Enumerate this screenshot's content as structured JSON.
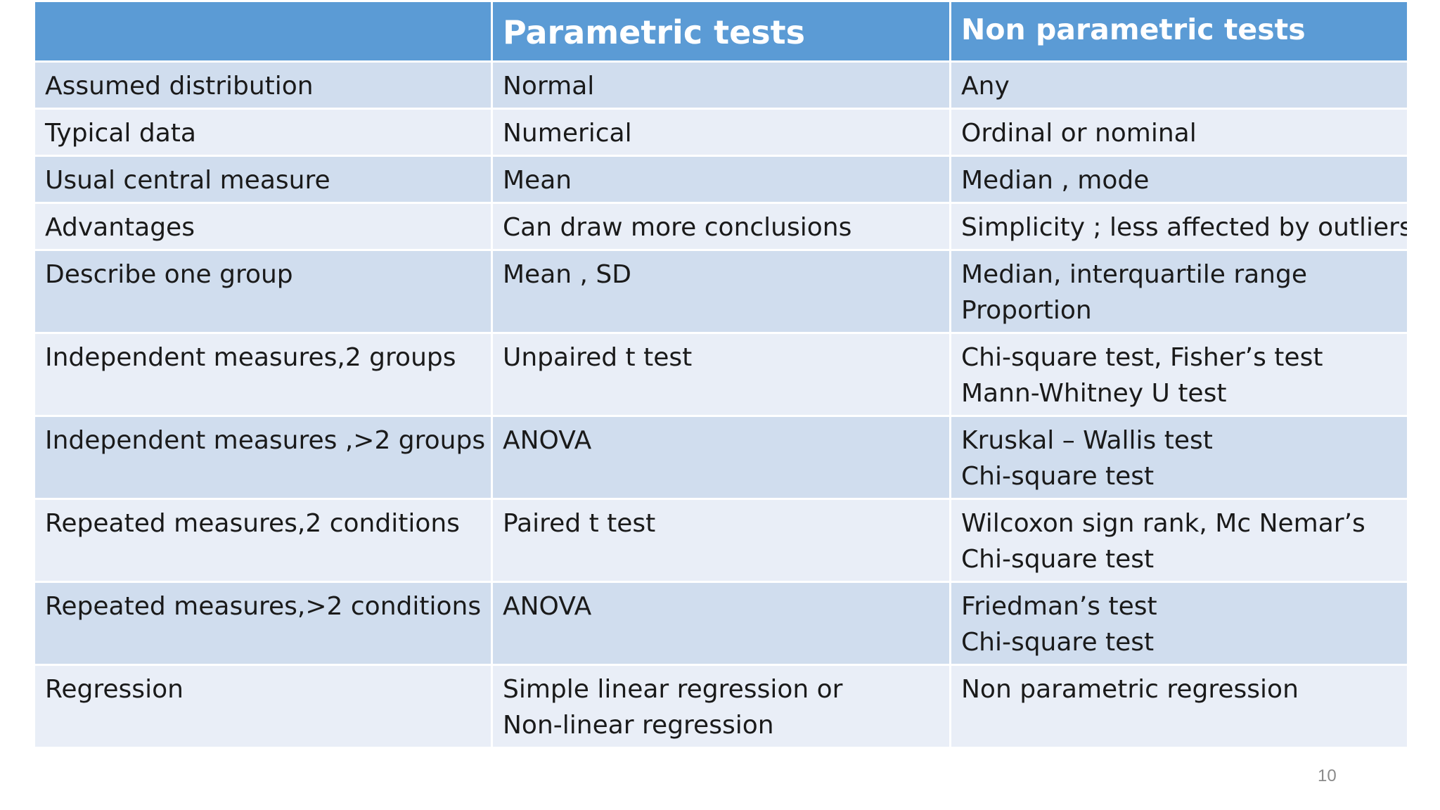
{
  "table": {
    "headers": [
      "",
      "Parametric tests",
      "Non parametric tests"
    ],
    "rows": [
      {
        "label": "Assumed distribution",
        "parametric": [
          "Normal"
        ],
        "nonparametric": [
          "Any"
        ]
      },
      {
        "label": "Typical data",
        "parametric": [
          "Numerical"
        ],
        "nonparametric": [
          "Ordinal or nominal"
        ]
      },
      {
        "label": "Usual central measure",
        "parametric": [
          "Mean"
        ],
        "nonparametric": [
          "Median , mode"
        ]
      },
      {
        "label": "Advantages",
        "parametric": [
          "Can draw more conclusions"
        ],
        "nonparametric": [
          "Simplicity ; less affected by outliers"
        ]
      },
      {
        "label": "Describe one group",
        "parametric": [
          "Mean , SD"
        ],
        "nonparametric": [
          "Median,  interquartile range",
          "Proportion"
        ]
      },
      {
        "label": "Independent measures,2 groups",
        "parametric": [
          "Unpaired t test"
        ],
        "nonparametric": [
          "Chi-square test, Fisher’s test",
          "Mann-Whitney U test"
        ]
      },
      {
        "label": "Independent measures ,>2 groups",
        "parametric": [
          "ANOVA"
        ],
        "nonparametric": [
          "Kruskal – Wallis test",
          "Chi-square test"
        ]
      },
      {
        "label": "Repeated measures,2 conditions",
        "parametric": [
          "Paired t test"
        ],
        "nonparametric": [
          "Wilcoxon sign rank, Mc Nemar’s",
          "Chi-square test"
        ]
      },
      {
        "label": "Repeated measures,>2 conditions",
        "parametric": [
          "ANOVA"
        ],
        "nonparametric": [
          "Friedman’s test",
          "Chi-square test"
        ]
      },
      {
        "label": "Regression",
        "parametric": [
          "Simple linear regression or",
          "Non-linear regression"
        ],
        "nonparametric": [
          "Non parametric regression"
        ]
      }
    ]
  },
  "page_number": "10",
  "colors": {
    "header_bg": "#5b9bd5",
    "row_odd_bg": "#d0ddee",
    "row_even_bg": "#e9eef7",
    "text": "#1a1a1a"
  }
}
